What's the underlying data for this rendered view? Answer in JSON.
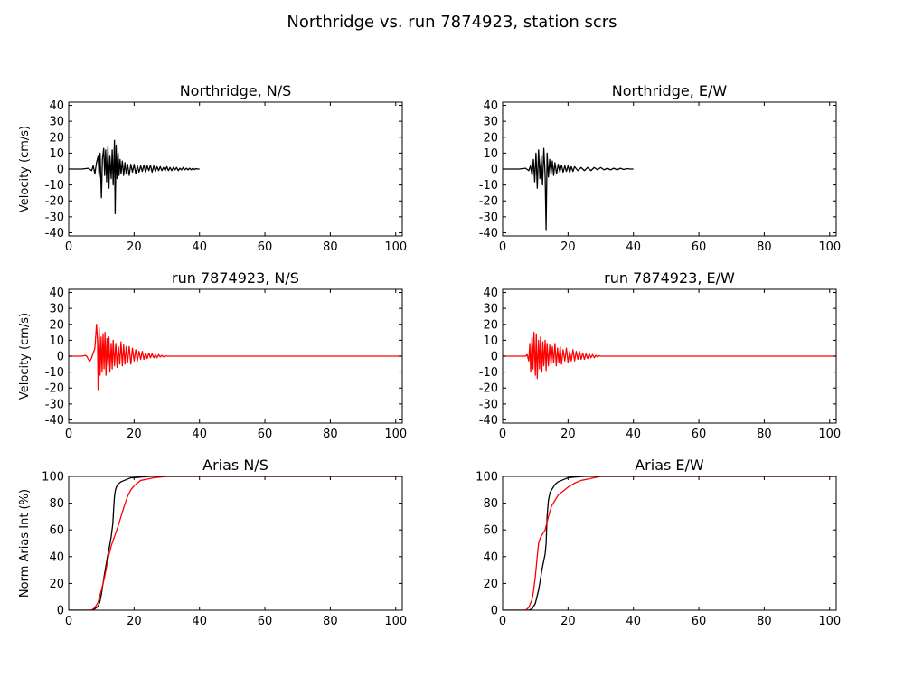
{
  "figure": {
    "title": "Northridge vs. run 7874923, station scrs"
  },
  "chart_data": [
    {
      "type": "line",
      "panel": "top-left",
      "title": "Northridge, N/S",
      "xlabel": "",
      "ylabel": "Velocity (cm/s)",
      "xlim": [
        0,
        102
      ],
      "ylim": [
        -42,
        42
      ],
      "xticks": [
        0,
        20,
        40,
        60,
        80,
        100
      ],
      "yticks": [
        -40,
        -30,
        -20,
        -10,
        0,
        10,
        20,
        30,
        40
      ],
      "series": [
        {
          "color": "#000000",
          "x": [
            0,
            4,
            6,
            7,
            7.5,
            8,
            8.5,
            9,
            9.3,
            9.6,
            10,
            10.3,
            10.7,
            11,
            11.3,
            11.6,
            12,
            12.3,
            12.6,
            13,
            13.3,
            13.6,
            14,
            14.2,
            14.5,
            14.8,
            15.1,
            15.4,
            15.7,
            16,
            16.4,
            16.8,
            17.2,
            17.6,
            18,
            18.5,
            19,
            19.5,
            20,
            20.5,
            21,
            21.5,
            22,
            22.5,
            23,
            23.5,
            24,
            24.5,
            25,
            25.5,
            26,
            26.5,
            27,
            27.5,
            28,
            28.5,
            29,
            29.5,
            30,
            30.5,
            31,
            31.5,
            32,
            32.5,
            33,
            33.5,
            34,
            34.5,
            35,
            35.5,
            36,
            36.5,
            37,
            37.5,
            38,
            38.5,
            39,
            39.5,
            40
          ],
          "y": [
            0,
            0,
            0.5,
            -1,
            2,
            -3,
            4,
            8,
            -5,
            10,
            -18,
            6,
            13,
            -4,
            12,
            -8,
            14,
            -12,
            8,
            -6,
            12,
            -10,
            18,
            -28,
            15,
            -6,
            10,
            -4,
            6,
            -3,
            5,
            -4,
            4,
            -3,
            3,
            -4,
            3,
            -2,
            3,
            -3,
            2,
            -2,
            2,
            -1.5,
            2.5,
            -2,
            2,
            -1,
            2.5,
            -2,
            2,
            -1.5,
            1.5,
            -1,
            1.5,
            -1,
            1,
            -1,
            1.5,
            -1,
            1,
            -1,
            1,
            -0.5,
            1,
            -1,
            0.5,
            -0.5,
            1,
            -0.5,
            0.5,
            -0.5,
            0.5,
            -0.5,
            0.5,
            -0.3,
            0.3,
            0,
            0
          ]
        }
      ]
    },
    {
      "type": "line",
      "panel": "top-right",
      "title": "Northridge, E/W",
      "xlabel": "",
      "ylabel": "",
      "xlim": [
        0,
        102
      ],
      "ylim": [
        -42,
        42
      ],
      "xticks": [
        0,
        20,
        40,
        60,
        80,
        100
      ],
      "yticks": [
        -40,
        -30,
        -20,
        -10,
        0,
        10,
        20,
        30,
        40
      ],
      "series": [
        {
          "color": "#000000",
          "x": [
            0,
            5,
            7,
            8,
            8.5,
            9,
            9.4,
            9.8,
            10.2,
            10.6,
            11,
            11.4,
            11.8,
            12.2,
            12.6,
            13,
            13.3,
            13.6,
            14,
            14.4,
            14.8,
            15.2,
            15.6,
            16,
            16.5,
            17,
            17.5,
            18,
            18.5,
            19,
            19.5,
            20,
            20.5,
            21,
            21.5,
            22,
            23,
            24,
            25,
            26,
            27,
            28,
            29,
            30,
            31,
            32,
            33,
            34,
            35,
            36,
            37,
            38,
            39,
            40
          ],
          "y": [
            0,
            0,
            0.5,
            -1,
            2,
            -4,
            6,
            -8,
            10,
            -12,
            12,
            -6,
            8,
            -10,
            13,
            -4,
            -38,
            10,
            -5,
            6,
            -3,
            5,
            -4,
            4,
            -3,
            3,
            -2,
            2.5,
            -2,
            2,
            -1.5,
            2,
            -2,
            1.5,
            -1.5,
            1.5,
            -1,
            1,
            -1,
            1,
            -1,
            1,
            -0.5,
            1,
            -0.5,
            0.5,
            -0.5,
            0.5,
            -0.5,
            0.5,
            -0.3,
            0.3,
            0,
            0
          ]
        }
      ]
    },
    {
      "type": "line",
      "panel": "middle-left",
      "title": "run 7874923, N/S",
      "xlabel": "",
      "ylabel": "Velocity (cm/s)",
      "xlim": [
        0,
        102
      ],
      "ylim": [
        -42,
        42
      ],
      "xticks": [
        0,
        20,
        40,
        60,
        80,
        100
      ],
      "yticks": [
        -40,
        -30,
        -20,
        -10,
        0,
        10,
        20,
        30,
        40
      ],
      "series": [
        {
          "color": "#ff0000",
          "x": [
            0,
            4,
            5,
            5.5,
            6,
            6.5,
            7,
            7.5,
            8,
            8.5,
            8.8,
            9,
            9.3,
            9.6,
            9.9,
            10.2,
            10.5,
            10.8,
            11.1,
            11.4,
            11.7,
            12,
            12.3,
            12.6,
            13,
            13.3,
            13.6,
            14,
            14.4,
            14.8,
            15.2,
            15.6,
            16,
            16.4,
            16.8,
            17.2,
            17.6,
            18,
            18.5,
            19,
            19.5,
            20,
            20.5,
            21,
            21.5,
            22,
            22.5,
            23,
            23.5,
            24,
            24.5,
            25,
            25.5,
            26,
            26.5,
            27,
            27.5,
            28,
            28.5,
            29,
            29.5,
            30,
            31,
            35,
            40,
            50,
            60,
            70,
            80,
            90,
            100,
            102
          ],
          "y": [
            0,
            0,
            0.5,
            0,
            -2,
            -3,
            -1,
            2,
            5,
            20,
            10,
            -21,
            18,
            -12,
            12,
            -10,
            14,
            -8,
            15,
            -12,
            11,
            -6,
            12,
            -10,
            8,
            -8,
            10,
            -6,
            8,
            -7,
            6,
            -5,
            9,
            -6,
            7,
            -5,
            6,
            -4,
            6,
            -5,
            5,
            -3,
            4,
            -3,
            3,
            -2,
            3,
            -2,
            2,
            -1.5,
            2,
            -1,
            1.5,
            -1,
            1,
            -1,
            1,
            -0.5,
            0.5,
            -0.5,
            0.3,
            0,
            0,
            0,
            0,
            0,
            0,
            0,
            0,
            0,
            0,
            0
          ]
        }
      ]
    },
    {
      "type": "line",
      "panel": "middle-right",
      "title": "run 7874923, E/W",
      "xlabel": "",
      "ylabel": "",
      "xlim": [
        0,
        102
      ],
      "ylim": [
        -42,
        42
      ],
      "xticks": [
        0,
        20,
        40,
        60,
        80,
        100
      ],
      "yticks": [
        -40,
        -30,
        -20,
        -10,
        0,
        10,
        20,
        30,
        40
      ],
      "series": [
        {
          "color": "#ff0000",
          "x": [
            0,
            7,
            7.5,
            8,
            8.3,
            8.6,
            9,
            9.3,
            9.6,
            10,
            10.3,
            10.6,
            11,
            11.3,
            11.6,
            12,
            12.3,
            12.6,
            13,
            13.3,
            13.6,
            14,
            14.4,
            14.8,
            15.2,
            15.6,
            16,
            16.4,
            16.8,
            17.2,
            17.6,
            18,
            18.5,
            19,
            19.5,
            20,
            20.5,
            21,
            21.5,
            22,
            22.5,
            23,
            23.5,
            24,
            24.5,
            25,
            25.5,
            26,
            26.5,
            27,
            27.5,
            28,
            28.5,
            29,
            29.5,
            30,
            31,
            40,
            50,
            60,
            70,
            80,
            90,
            100,
            102
          ],
          "y": [
            0,
            0,
            1,
            -3,
            8,
            -10,
            12,
            -8,
            15,
            -12,
            14,
            -14,
            10,
            -8,
            12,
            -10,
            9,
            -6,
            10,
            -9,
            8,
            -6,
            7,
            -5,
            6,
            -4,
            8,
            -6,
            5,
            -4,
            6,
            -5,
            4,
            -3,
            5,
            -4,
            3,
            -3,
            4,
            -3,
            3,
            -2,
            3,
            -2,
            2,
            -2,
            1.5,
            -1.5,
            1.5,
            -1,
            1,
            -1,
            0.5,
            -0.5,
            0.3,
            0,
            0,
            0,
            0,
            0,
            0,
            0,
            0,
            0,
            0
          ]
        }
      ]
    },
    {
      "type": "line",
      "panel": "bottom-left",
      "title": "Arias N/S",
      "xlabel": "",
      "ylabel": "Norm Arias Int (%)",
      "xlim": [
        0,
        102
      ],
      "ylim": [
        0,
        100
      ],
      "xticks": [
        0,
        20,
        40,
        60,
        80,
        100
      ],
      "yticks": [
        0,
        20,
        40,
        60,
        80,
        100
      ],
      "series": [
        {
          "color": "#000000",
          "x": [
            0,
            7,
            8,
            9,
            9.5,
            10,
            10.5,
            11,
            11.5,
            12,
            12.5,
            13,
            13.5,
            13.8,
            14,
            14.3,
            14.6,
            15,
            16,
            17,
            18,
            19,
            20,
            22,
            25,
            30,
            102
          ],
          "y": [
            0,
            0,
            1,
            3,
            6,
            12,
            20,
            28,
            35,
            42,
            48,
            55,
            65,
            78,
            85,
            90,
            92,
            94,
            96,
            97,
            98,
            99,
            99,
            99.5,
            100,
            100,
            100
          ]
        },
        {
          "color": "#ff0000",
          "x": [
            0,
            7,
            8,
            9,
            10,
            11,
            12,
            13,
            14,
            15,
            16,
            17,
            18,
            19,
            20,
            21,
            22,
            24,
            26,
            28,
            30,
            102
          ],
          "y": [
            0,
            0,
            2,
            6,
            15,
            25,
            38,
            48,
            55,
            62,
            70,
            78,
            85,
            90,
            93,
            95,
            97,
            98,
            99,
            99.5,
            100,
            100
          ]
        }
      ]
    },
    {
      "type": "line",
      "panel": "bottom-right",
      "title": "Arias E/W",
      "xlabel": "",
      "ylabel": "",
      "xlim": [
        0,
        102
      ],
      "ylim": [
        0,
        100
      ],
      "xticks": [
        0,
        20,
        40,
        60,
        80,
        100
      ],
      "yticks": [
        0,
        20,
        40,
        60,
        80,
        100
      ],
      "series": [
        {
          "color": "#000000",
          "x": [
            0,
            8,
            9,
            10,
            10.5,
            11,
            11.5,
            12,
            12.5,
            13,
            13.3,
            13.6,
            14,
            14.5,
            15,
            15.5,
            16,
            17,
            18,
            19,
            20,
            22,
            25,
            30,
            102
          ],
          "y": [
            0,
            0,
            1,
            5,
            10,
            15,
            22,
            30,
            36,
            42,
            50,
            70,
            82,
            88,
            90,
            92,
            94,
            96,
            97,
            98,
            99,
            99.5,
            100,
            100,
            100
          ]
        },
        {
          "color": "#ff0000",
          "x": [
            0,
            7,
            8,
            9,
            9.5,
            10,
            10.5,
            11,
            11.5,
            12,
            12.5,
            13,
            14,
            15,
            16,
            17,
            18,
            20,
            22,
            24,
            26,
            28,
            30,
            102
          ],
          "y": [
            0,
            0,
            2,
            8,
            15,
            25,
            38,
            50,
            54,
            56,
            58,
            60,
            70,
            78,
            82,
            86,
            88,
            92,
            95,
            97,
            98,
            99,
            100,
            100
          ]
        }
      ]
    }
  ]
}
